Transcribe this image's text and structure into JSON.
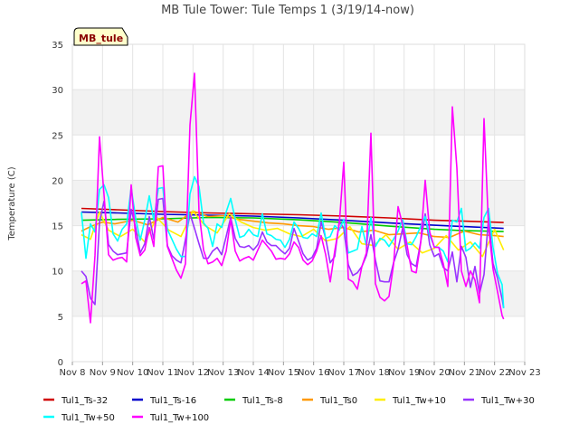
{
  "chart_data": {
    "type": "line",
    "title": "MB Tule Tower: Tule Temps 1 (3/19/14-now)",
    "xlabel": "",
    "ylabel": "Temperature (C)",
    "badge": "MB_tule",
    "xlim": [
      8,
      23
    ],
    "ylim": [
      0,
      35
    ],
    "x_ticks": [
      8,
      9,
      10,
      11,
      12,
      13,
      14,
      15,
      16,
      17,
      18,
      19,
      20,
      21,
      22,
      23
    ],
    "x_tick_labels": [
      "Nov 8",
      "Nov 9",
      "Nov 10",
      "Nov 11",
      "Nov 12",
      "Nov 13",
      "Nov 14",
      "Nov 15",
      "Nov 16",
      "Nov 17",
      "Nov 18",
      "Nov 19",
      "Nov 20",
      "Nov 21",
      "Nov 22",
      "Nov 23"
    ],
    "y_ticks": [
      0,
      5,
      10,
      15,
      20,
      25,
      30,
      35
    ],
    "y_tick_labels": [
      "0",
      "5",
      "10",
      "15",
      "20",
      "25",
      "30",
      "35"
    ],
    "bands": [
      [
        5,
        10
      ],
      [
        15,
        20
      ],
      [
        25,
        30
      ]
    ],
    "series": [
      {
        "name": "Tul1_Ts-32",
        "color": "#d00000",
        "x": [
          8.3,
          9.5,
          11,
          12.5,
          14,
          15.5,
          17,
          18.5,
          20,
          21,
          22.3
        ],
        "y": [
          16.9,
          16.75,
          16.55,
          16.4,
          16.3,
          16.2,
          16.05,
          15.85,
          15.6,
          15.5,
          15.35
        ]
      },
      {
        "name": "Tul1_Ts-16",
        "color": "#0000cc",
        "x": [
          8.3,
          9.5,
          11,
          12.5,
          14,
          15.5,
          17,
          18.5,
          20,
          21,
          22.3
        ],
        "y": [
          16.5,
          16.4,
          16.25,
          16.15,
          16.05,
          15.85,
          15.6,
          15.3,
          15.05,
          14.9,
          14.7
        ]
      },
      {
        "name": "Tul1_Ts-8",
        "color": "#00cc00",
        "x": [
          8.3,
          9.5,
          11,
          12.5,
          14,
          15.5,
          17,
          18.5,
          20,
          21,
          22.3
        ],
        "y": [
          15.6,
          15.7,
          15.75,
          15.9,
          15.85,
          15.65,
          15.35,
          14.95,
          14.6,
          14.45,
          14.35
        ]
      },
      {
        "name": "Tul1_Ts0",
        "color": "#ff9900",
        "x": [
          8.3,
          8.6,
          9.0,
          9.4,
          10,
          10.5,
          11,
          11.5,
          12,
          12.5,
          13,
          13.5,
          14,
          14.5,
          15,
          15.5,
          16,
          16.5,
          17,
          17.5,
          18,
          18.5,
          19,
          19.5,
          20,
          20.5,
          21,
          21.5,
          22,
          22.3
        ],
        "y": [
          14.4,
          14.9,
          15.4,
          15.2,
          15.6,
          15.1,
          15.9,
          15.4,
          16.6,
          16.0,
          16.1,
          15.7,
          15.5,
          15.3,
          15.2,
          15.0,
          14.9,
          14.6,
          14.8,
          14.3,
          14.5,
          14.0,
          14.1,
          14.2,
          13.8,
          13.7,
          14.4,
          14.0,
          13.9,
          13.8
        ]
      },
      {
        "name": "Tul1_Tw+10",
        "color": "#ffee00",
        "x": [
          8.3,
          8.6,
          8.9,
          9.2,
          9.6,
          10,
          10.4,
          10.8,
          11.2,
          11.6,
          12,
          12.4,
          12.8,
          13.2,
          13.6,
          14,
          14.4,
          14.8,
          15.2,
          15.6,
          16,
          16.4,
          16.8,
          17.2,
          17.6,
          18,
          18.4,
          18.8,
          19.2,
          19.6,
          20,
          20.4,
          20.8,
          21.2,
          21.6,
          22,
          22.3
        ],
        "y": [
          14.0,
          13.5,
          16.5,
          14.5,
          13.8,
          14.6,
          13.2,
          15.9,
          14.5,
          13.8,
          16.6,
          15.0,
          14.2,
          16.3,
          15.4,
          14.8,
          14.5,
          14.7,
          14.1,
          13.8,
          14.6,
          13.3,
          13.6,
          14.9,
          13.0,
          12.8,
          14.0,
          12.4,
          13.2,
          12.0,
          12.5,
          13.9,
          12.3,
          13.2,
          11.6,
          14.6,
          12.3
        ]
      },
      {
        "name": "Tul1_Tw+30",
        "color": "#9933ff",
        "x": [
          8.3,
          8.45,
          8.6,
          8.75,
          8.9,
          9.05,
          9.2,
          9.35,
          9.5,
          9.65,
          9.8,
          9.95,
          10.1,
          10.25,
          10.4,
          10.55,
          10.7,
          10.85,
          11.0,
          11.15,
          11.3,
          11.45,
          11.6,
          11.75,
          11.9,
          12.05,
          12.2,
          12.35,
          12.5,
          12.65,
          12.8,
          12.95,
          13.1,
          13.25,
          13.4,
          13.55,
          13.7,
          13.85,
          14.0,
          14.15,
          14.3,
          14.45,
          14.6,
          14.75,
          14.9,
          15.05,
          15.2,
          15.35,
          15.5,
          15.65,
          15.8,
          15.95,
          16.1,
          16.25,
          16.4,
          16.55,
          16.7,
          16.85,
          17.0,
          17.15,
          17.3,
          17.45,
          17.6,
          17.75,
          17.9,
          18.05,
          18.2,
          18.35,
          18.5,
          18.65,
          18.8,
          18.95,
          19.1,
          19.25,
          19.4,
          19.55,
          19.7,
          19.85,
          20.0,
          20.15,
          20.3,
          20.45,
          20.6,
          20.75,
          20.9,
          21.05,
          21.2,
          21.35,
          21.5,
          21.65,
          21.8,
          21.95,
          22.1,
          22.25,
          22.3
        ],
        "y": [
          10.0,
          9.4,
          7.0,
          6.3,
          15.4,
          17.7,
          12.9,
          12.2,
          11.8,
          11.9,
          12.0,
          16.8,
          14.8,
          12.0,
          13.0,
          16.0,
          13.5,
          17.9,
          18.0,
          12.8,
          11.7,
          11.2,
          10.9,
          13.5,
          16.3,
          14.7,
          13.0,
          11.4,
          11.4,
          12.2,
          12.6,
          11.8,
          13.8,
          15.9,
          13.6,
          12.7,
          12.6,
          12.8,
          12.3,
          12.9,
          14.3,
          13.2,
          12.8,
          12.8,
          12.3,
          11.9,
          12.5,
          14.7,
          13.3,
          11.9,
          11.2,
          11.5,
          12.5,
          15.4,
          13.6,
          10.9,
          11.6,
          15.5,
          14.7,
          10.7,
          9.5,
          9.8,
          10.5,
          11.7,
          14.0,
          11.2,
          8.9,
          8.8,
          8.8,
          10.9,
          12.4,
          14.7,
          11.8,
          10.8,
          10.5,
          13.2,
          16.3,
          12.9,
          11.6,
          11.9,
          10.4,
          10.0,
          12.1,
          8.8,
          12.7,
          11.5,
          8.2,
          10.5,
          7.5,
          9.6,
          15.8,
          10.8,
          9.2,
          6.9,
          5.9
        ]
      },
      {
        "name": "Tul1_Tw+50",
        "color": "#00ffff",
        "x": [
          8.3,
          8.45,
          8.6,
          8.75,
          8.9,
          9.05,
          9.2,
          9.35,
          9.5,
          9.65,
          9.8,
          9.95,
          10.1,
          10.25,
          10.4,
          10.55,
          10.7,
          10.85,
          11.0,
          11.15,
          11.3,
          11.45,
          11.6,
          11.75,
          11.9,
          12.05,
          12.2,
          12.35,
          12.5,
          12.65,
          12.8,
          12.95,
          13.1,
          13.25,
          13.4,
          13.55,
          13.7,
          13.85,
          14.0,
          14.15,
          14.3,
          14.45,
          14.6,
          14.75,
          14.9,
          15.05,
          15.2,
          15.35,
          15.5,
          15.65,
          15.8,
          15.95,
          16.1,
          16.25,
          16.4,
          16.55,
          16.7,
          16.85,
          17.0,
          17.15,
          17.3,
          17.45,
          17.6,
          17.75,
          17.9,
          18.05,
          18.2,
          18.35,
          18.5,
          18.65,
          18.8,
          18.95,
          19.1,
          19.25,
          19.4,
          19.55,
          19.7,
          19.85,
          20.0,
          20.15,
          20.3,
          20.45,
          20.6,
          20.75,
          20.9,
          21.05,
          21.2,
          21.35,
          21.5,
          21.65,
          21.8,
          21.95,
          22.1,
          22.25,
          22.3
        ],
        "y": [
          16.5,
          11.4,
          15.2,
          14.3,
          19.0,
          19.5,
          18.1,
          14.1,
          13.3,
          14.6,
          15.2,
          19.2,
          15.8,
          13.4,
          15.6,
          18.3,
          15.6,
          19.1,
          19.2,
          14.6,
          13.5,
          12.4,
          11.6,
          11.6,
          18.5,
          20.4,
          19.3,
          15.3,
          14.7,
          12.7,
          15.2,
          14.8,
          16.5,
          18.0,
          15.7,
          13.7,
          13.9,
          14.6,
          14.0,
          13.8,
          16.3,
          14.1,
          13.9,
          13.5,
          13.4,
          12.6,
          13.5,
          15.4,
          14.7,
          13.7,
          13.6,
          14.1,
          13.8,
          16.4,
          13.6,
          13.8,
          15.0,
          14.5,
          15.7,
          12.0,
          12.2,
          12.4,
          14.9,
          12.8,
          15.9,
          12.7,
          13.6,
          13.4,
          12.7,
          13.5,
          14.4,
          15.7,
          13.0,
          12.9,
          13.8,
          14.9,
          16.0,
          13.9,
          12.7,
          12.6,
          12.2,
          11.0,
          15.6,
          15.4,
          16.9,
          12.2,
          12.5,
          13.1,
          12.5,
          15.9,
          16.9,
          12.6,
          9.7,
          8.5,
          5.9
        ]
      },
      {
        "name": "Tul1_Tw+100",
        "color": "#ff00ff",
        "x": [
          8.3,
          8.45,
          8.6,
          8.75,
          8.9,
          9.05,
          9.2,
          9.35,
          9.5,
          9.65,
          9.8,
          9.95,
          10.1,
          10.25,
          10.4,
          10.55,
          10.7,
          10.85,
          11.0,
          11.15,
          11.3,
          11.45,
          11.6,
          11.75,
          11.9,
          12.05,
          12.2,
          12.35,
          12.5,
          12.65,
          12.8,
          12.95,
          13.1,
          13.25,
          13.4,
          13.55,
          13.7,
          13.85,
          14.0,
          14.15,
          14.3,
          14.45,
          14.6,
          14.75,
          14.9,
          15.05,
          15.2,
          15.35,
          15.5,
          15.65,
          15.8,
          15.95,
          16.1,
          16.25,
          16.4,
          16.55,
          16.7,
          16.85,
          17.0,
          17.15,
          17.3,
          17.45,
          17.6,
          17.75,
          17.9,
          18.05,
          18.2,
          18.35,
          18.5,
          18.65,
          18.8,
          18.95,
          19.1,
          19.25,
          19.4,
          19.55,
          19.7,
          19.85,
          20.0,
          20.15,
          20.3,
          20.45,
          20.6,
          20.75,
          20.9,
          21.05,
          21.2,
          21.35,
          21.5,
          21.65,
          21.8,
          21.95,
          22.1,
          22.25,
          22.3
        ],
        "y": [
          8.6,
          8.9,
          4.3,
          11.7,
          24.8,
          18.4,
          11.8,
          11.2,
          11.4,
          11.5,
          11.0,
          19.5,
          13.7,
          11.7,
          12.3,
          14.8,
          12.7,
          21.5,
          21.6,
          12.7,
          11.4,
          10.1,
          9.2,
          10.8,
          26.1,
          31.8,
          16.5,
          12.3,
          10.8,
          11.0,
          11.4,
          10.6,
          12.2,
          15.7,
          12.2,
          11.1,
          11.4,
          11.6,
          11.2,
          12.3,
          13.4,
          12.8,
          12.2,
          11.3,
          11.4,
          11.3,
          11.9,
          13.2,
          12.6,
          11.2,
          10.7,
          11.1,
          12.2,
          13.9,
          11.8,
          8.8,
          12.2,
          15.2,
          22.0,
          9.1,
          8.8,
          8.0,
          10.5,
          12.0,
          25.2,
          8.6,
          7.1,
          6.7,
          7.2,
          10.7,
          17.1,
          15.1,
          12.8,
          10.0,
          9.8,
          13.1,
          20.0,
          14.3,
          12.6,
          12.6,
          10.8,
          8.3,
          28.1,
          21.4,
          10.0,
          8.3,
          10.0,
          9.0,
          6.5,
          26.8,
          14.9,
          10.2,
          7.7,
          5.1,
          4.7
        ]
      }
    ]
  }
}
